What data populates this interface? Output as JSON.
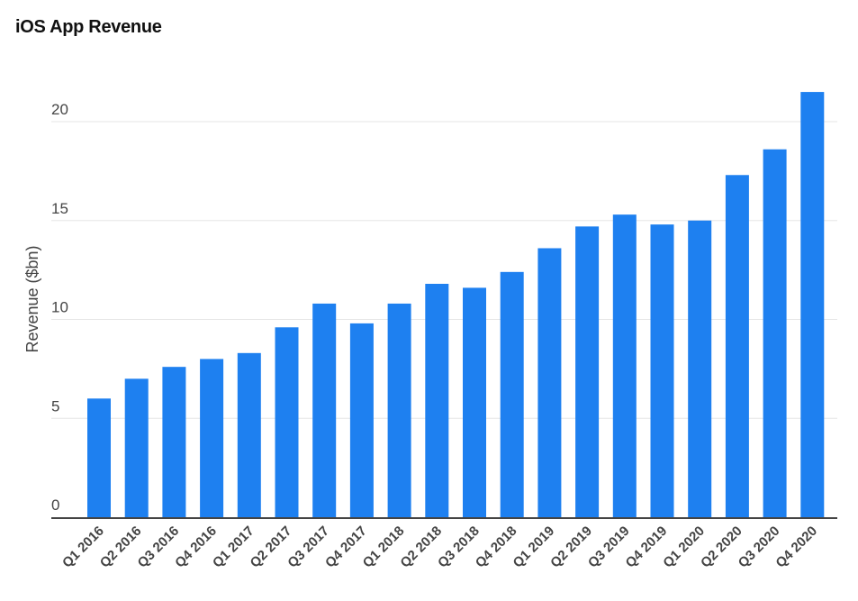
{
  "chart_data": {
    "type": "bar",
    "title": "iOS App Revenue",
    "xlabel": "",
    "ylabel": "Revenue ($bn)",
    "ylim": [
      0,
      22
    ],
    "yticks": [
      0,
      5,
      10,
      15,
      20
    ],
    "grid": true,
    "color": "#1e80f0",
    "categories": [
      "Q1 2016",
      "Q2 2016",
      "Q3 2016",
      "Q4 2016",
      "Q1 2017",
      "Q2 2017",
      "Q3 2017",
      "Q4 2017",
      "Q1 2018",
      "Q2 2018",
      "Q3 2018",
      "Q4 2018",
      "Q1 2019",
      "Q2 2019",
      "Q3 2019",
      "Q4 2019",
      "Q1 2020",
      "Q2 2020",
      "Q3 2020",
      "Q4 2020"
    ],
    "values": [
      6.0,
      7.0,
      7.6,
      8.0,
      8.3,
      9.6,
      10.8,
      9.8,
      10.8,
      11.8,
      11.6,
      12.4,
      13.6,
      14.7,
      15.3,
      14.8,
      15.0,
      17.3,
      18.6,
      21.5
    ]
  }
}
